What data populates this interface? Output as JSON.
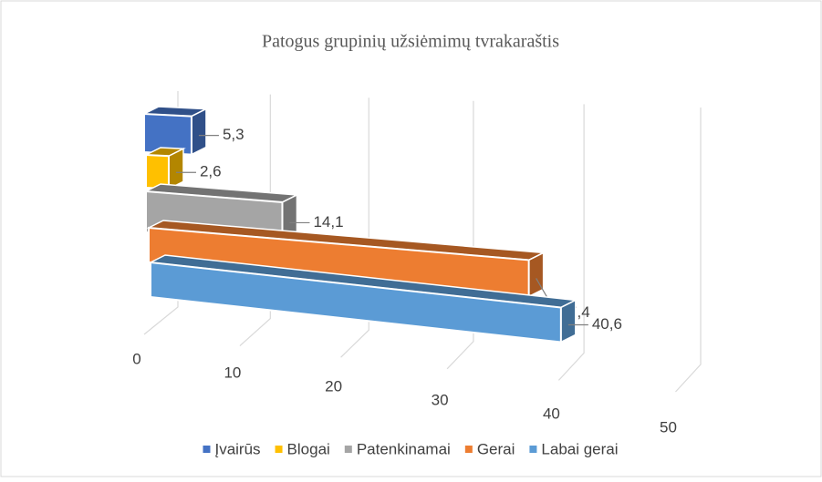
{
  "chart_data": {
    "type": "bar",
    "title": "Patogus grupinių užsiėmimų tvrakaraštis",
    "categories": [
      null
    ],
    "series": [
      {
        "name": "Įvairūs",
        "color": "#4472c4",
        "values": [
          5.3
        ],
        "value_labels": [
          "5,3"
        ]
      },
      {
        "name": "Blogai",
        "color": "#ffc000",
        "values": [
          2.6
        ],
        "value_labels": [
          "2,6"
        ]
      },
      {
        "name": "Patenkinamai",
        "color": "#a5a5a5",
        "values": [
          14.1
        ],
        "value_labels": [
          "14,1"
        ]
      },
      {
        "name": "Gerai",
        "color": "#ed7d31",
        "values": [
          37.4
        ],
        "value_labels": [
          "37,4"
        ]
      },
      {
        "name": "Labai gerai",
        "color": "#5b9bd5",
        "values": [
          40.6
        ],
        "value_labels": [
          "40,6"
        ]
      }
    ],
    "xlim": [
      0,
      50
    ],
    "xticks": [
      0,
      10,
      20,
      30,
      40,
      50
    ],
    "grid": true,
    "legend": "bottom"
  }
}
